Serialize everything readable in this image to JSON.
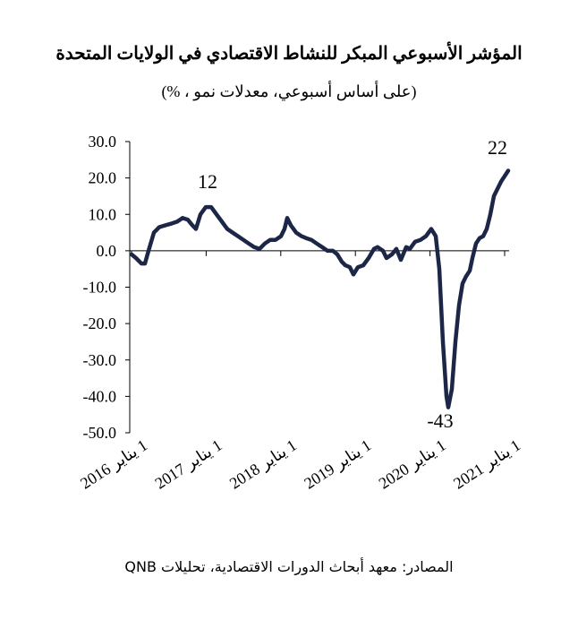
{
  "chart_data": {
    "type": "line",
    "title": "المؤشر الأسبوعي المبكر للنشاط الاقتصادي في الولايات المتحدة",
    "subtitle": "(على أساس أسبوعي، معدلات نمو ، %)",
    "source": "المصادر: معهد أبحاث الدورات الاقتصادية، تحليلات QNB",
    "annotations": [
      "12",
      "22",
      "-43"
    ],
    "xlim": [
      2016,
      2021.06
    ],
    "xticks": [
      {
        "value": 2016,
        "label": "1 يناير 2016"
      },
      {
        "value": 2017,
        "label": "1 يناير 2017"
      },
      {
        "value": 2018,
        "label": "1 يناير 2018"
      },
      {
        "value": 2019,
        "label": "1 يناير 2019"
      },
      {
        "value": 2020,
        "label": "1 يناير 2020"
      },
      {
        "value": 2021,
        "label": "1 يناير 2021"
      }
    ],
    "ylim": [
      -50,
      30
    ],
    "yticks": [
      {
        "value": 30,
        "label": "30.0"
      },
      {
        "value": 20,
        "label": "20.0"
      },
      {
        "value": 10,
        "label": "10.0"
      },
      {
        "value": 0,
        "label": "0.0"
      },
      {
        "value": -10,
        "label": "-10.0"
      },
      {
        "value": -20,
        "label": "-20.0"
      },
      {
        "value": -30,
        "label": "-30.0"
      },
      {
        "value": -40,
        "label": "-40.0"
      },
      {
        "value": -50,
        "label": "-50.0"
      }
    ],
    "grid": false,
    "color": "#1c2747",
    "x": [
      2016.0,
      2016.06,
      2016.132,
      2016.18,
      2016.228,
      2016.3,
      2016.372,
      2016.456,
      2016.54,
      2016.612,
      2016.683,
      2016.755,
      2016.815,
      2016.863,
      2016.923,
      2016.995,
      2017.067,
      2017.139,
      2017.211,
      2017.283,
      2017.355,
      2017.427,
      2017.499,
      2017.571,
      2017.643,
      2017.715,
      2017.787,
      2017.859,
      2017.93,
      2018.002,
      2018.05,
      2018.086,
      2018.134,
      2018.206,
      2018.278,
      2018.338,
      2018.41,
      2018.482,
      2018.554,
      2018.626,
      2018.698,
      2018.758,
      2018.818,
      2018.866,
      2018.926,
      2018.974,
      2019.034,
      2019.106,
      2019.177,
      2019.249,
      2019.297,
      2019.369,
      2019.417,
      2019.489,
      2019.549,
      2019.609,
      2019.681,
      2019.729,
      2019.801,
      2019.873,
      2019.945,
      2020.017,
      2020.077,
      2020.125,
      2020.173,
      2020.221,
      2020.245,
      2020.293,
      2020.341,
      2020.388,
      2020.436,
      2020.484,
      2020.532,
      2020.568,
      2020.616,
      2020.664,
      2020.712,
      2020.76,
      2020.808,
      2020.856,
      2020.904,
      2020.952,
      2021.048
    ],
    "values": [
      -1,
      -2,
      -3.5,
      -3.5,
      0,
      5,
      6.5,
      7,
      7.5,
      8,
      9,
      8.5,
      7,
      6,
      10,
      12,
      12,
      10,
      8,
      6,
      5,
      4,
      3,
      2,
      1,
      0.5,
      2,
      3,
      3,
      4,
      6,
      9,
      7,
      5,
      4,
      3.5,
      3,
      2,
      1,
      0,
      0,
      -1,
      -3,
      -4,
      -4.5,
      -6.5,
      -4.5,
      -4,
      -2,
      0.5,
      1,
      0,
      -2,
      -1,
      0.5,
      -2.5,
      1,
      0.5,
      2.5,
      3,
      4,
      6,
      4,
      -5,
      -25,
      -40,
      -43,
      -38,
      -25,
      -15,
      -9,
      -7,
      -5.5,
      -2,
      2,
      3.5,
      4,
      6,
      10,
      15,
      17,
      19,
      22
    ]
  }
}
